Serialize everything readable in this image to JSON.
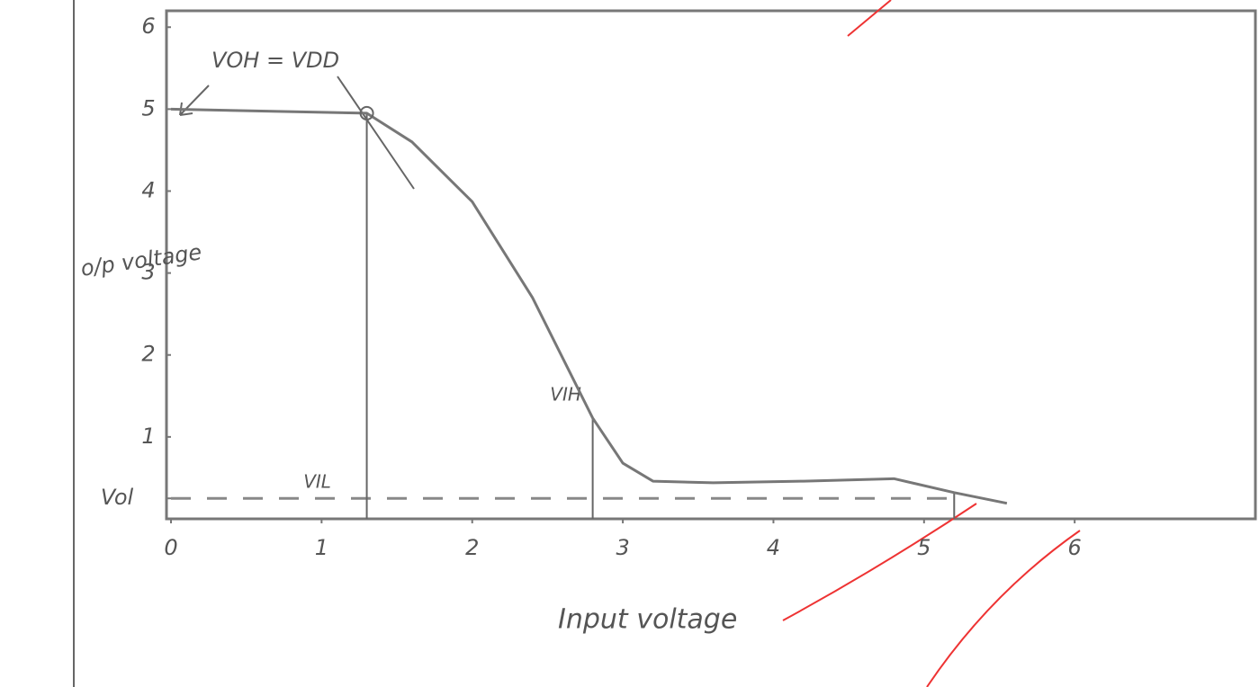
{
  "chart_data": {
    "type": "line",
    "x": [
      0,
      1.3,
      1.6,
      2.0,
      2.4,
      2.8,
      3.0,
      3.2,
      3.6,
      4.2,
      4.8,
      5.2,
      5.55
    ],
    "values": [
      5.0,
      4.95,
      4.6,
      3.87,
      2.7,
      1.23,
      0.68,
      0.46,
      0.44,
      0.46,
      0.49,
      0.32,
      0.19
    ],
    "color": "#777777",
    "xlim": [
      0,
      7.2
    ],
    "ylim": [
      0,
      6.2
    ],
    "xticks": [
      0,
      1,
      2,
      3,
      4,
      5,
      6
    ],
    "yticks": [
      {
        "value": 0.25,
        "label": "Vol"
      },
      1,
      2,
      3,
      4,
      5,
      6
    ],
    "xlabel": "Input voltage",
    "ylabel": "o/p voltage",
    "guides": [
      {
        "x": 1.3,
        "y": 4.95,
        "label": "VIL"
      },
      {
        "x": 2.8,
        "y": 1.23,
        "label": "VIH"
      },
      {
        "x": 5.2,
        "y": 0.32
      }
    ],
    "annotation": "VOH = VDD"
  }
}
